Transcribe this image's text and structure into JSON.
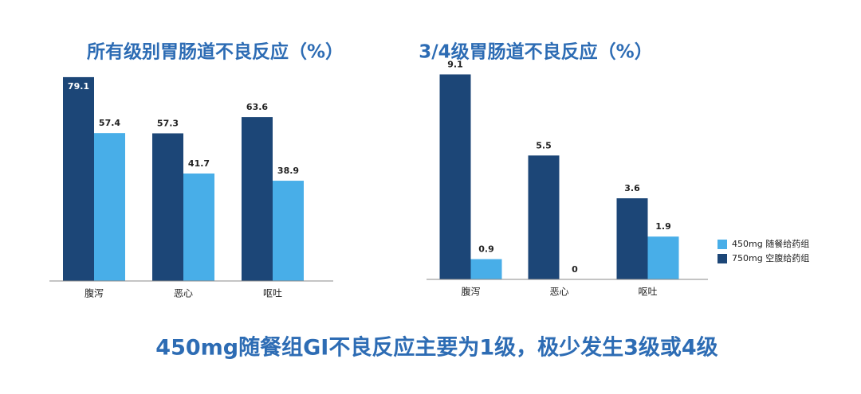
{
  "chart_data": [
    {
      "type": "bar",
      "title": "所有级别胃肠道不良反应（%）",
      "categories": [
        "腹泻",
        "恶心",
        "呕吐"
      ],
      "series": [
        {
          "color": "#1c4677",
          "values": [
            79.1,
            57.3,
            63.6
          ]
        },
        {
          "color": "#48aee8",
          "values": [
            57.4,
            41.7,
            38.9
          ]
        }
      ],
      "ylim": [
        0,
        80
      ]
    },
    {
      "type": "bar",
      "title": "3/4级胃肠道不良反应（%）",
      "categories": [
        "腹泻",
        "恶心",
        "呕吐"
      ],
      "series": [
        {
          "name": "750mg 空腹给药组",
          "color": "#1c4677",
          "values": [
            9.1,
            5.5,
            3.6
          ]
        },
        {
          "name": "450mg 随餐给药组",
          "color": "#48aee8",
          "values": [
            0.9,
            0,
            1.9
          ]
        }
      ],
      "ylim": [
        0,
        10
      ],
      "legend": "right"
    }
  ],
  "footer": "450mg随餐组GI不良反应主要为1级，极少发生3级或4级"
}
